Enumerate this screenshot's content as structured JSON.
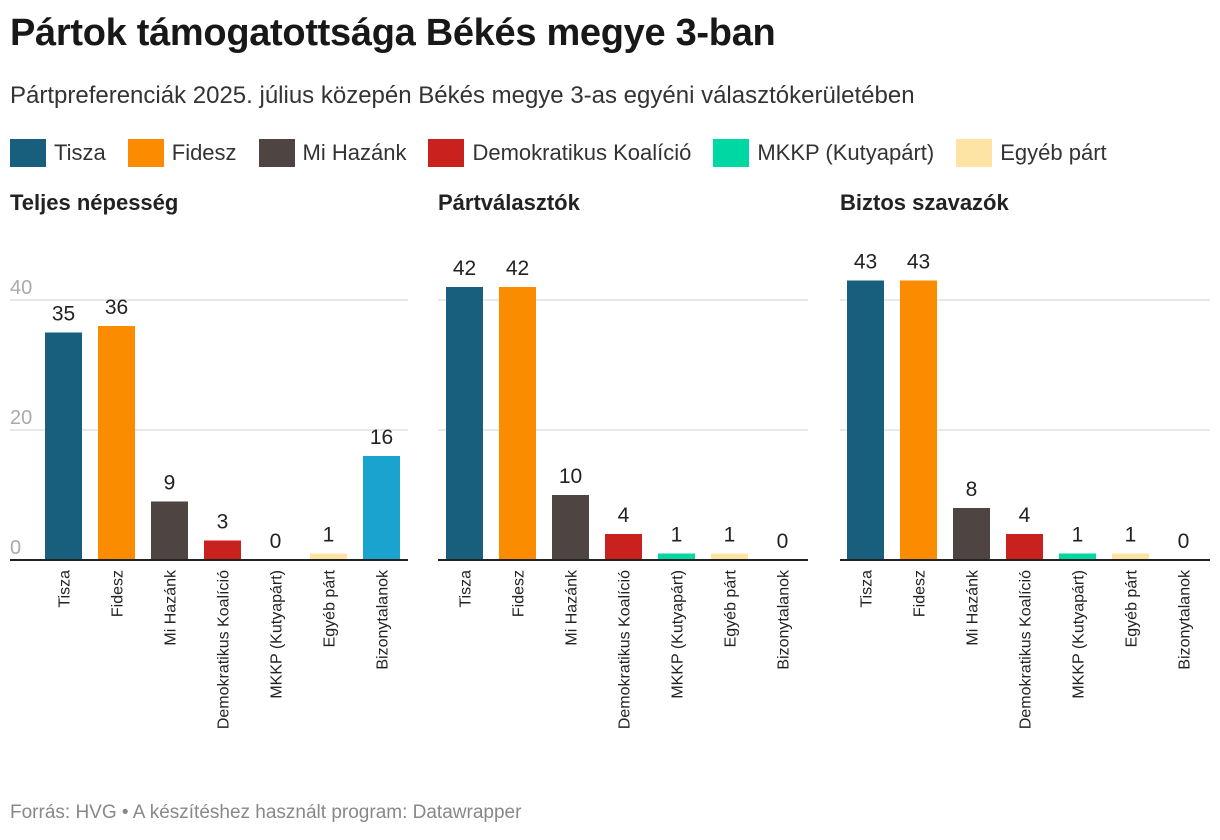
{
  "title": "Pártok támogatottsága Békés megye 3-ban",
  "subtitle": "Pártpreferenciák 2025. július közepén Békés megye 3-as egyéni választókerületében",
  "legend": [
    {
      "label": "Tisza",
      "color": "#175f7d"
    },
    {
      "label": "Fidesz",
      "color": "#fb8c00"
    },
    {
      "label": "Mi Hazánk",
      "color": "#4e4542"
    },
    {
      "label": "Demokratikus Koalíció",
      "color": "#c9211e"
    },
    {
      "label": "MKKP (Kutyapárt)",
      "color": "#00d8a3"
    },
    {
      "label": "Egyéb párt",
      "color": "#fde4a5"
    }
  ],
  "footer": "Forrás: HVG • A készítéshez használt program: Datawrapper",
  "chart_data": [
    {
      "type": "bar",
      "title": "Teljes népesség",
      "categories": [
        "Tisza",
        "Fidesz",
        "Mi Hazánk",
        "Demokratikus Koalíció",
        "MKKP (Kutyapárt)",
        "Egyéb párt",
        "Bizonytalanok"
      ],
      "values": [
        35,
        36,
        9,
        3,
        0,
        1,
        16
      ],
      "colors": [
        "#175f7d",
        "#fb8c00",
        "#4e4542",
        "#c9211e",
        "#00d8a3",
        "#fde4a5",
        "#1ba3d0"
      ],
      "yticks": [
        0,
        20,
        40
      ],
      "ylim": [
        0,
        40
      ],
      "show_tick_labels": true
    },
    {
      "type": "bar",
      "title": "Pártválasztók",
      "categories": [
        "Tisza",
        "Fidesz",
        "Mi Hazánk",
        "Demokratikus Koalíció",
        "MKKP (Kutyapárt)",
        "Egyéb párt",
        "Bizonytalanok"
      ],
      "values": [
        42,
        42,
        10,
        4,
        1,
        1,
        0
      ],
      "colors": [
        "#175f7d",
        "#fb8c00",
        "#4e4542",
        "#c9211e",
        "#00d8a3",
        "#fde4a5",
        "#1ba3d0"
      ],
      "yticks": [
        0,
        20,
        40
      ],
      "ylim": [
        0,
        40
      ],
      "show_tick_labels": false
    },
    {
      "type": "bar",
      "title": "Biztos szavazók",
      "categories": [
        "Tisza",
        "Fidesz",
        "Mi Hazánk",
        "Demokratikus Koalíció",
        "MKKP (Kutyapárt)",
        "Egyéb párt",
        "Bizonytalanok"
      ],
      "values": [
        43,
        43,
        8,
        4,
        1,
        1,
        0
      ],
      "colors": [
        "#175f7d",
        "#fb8c00",
        "#4e4542",
        "#c9211e",
        "#00d8a3",
        "#fde4a5",
        "#1ba3d0"
      ],
      "yticks": [
        0,
        20,
        40
      ],
      "ylim": [
        0,
        40
      ],
      "show_tick_labels": false
    }
  ]
}
